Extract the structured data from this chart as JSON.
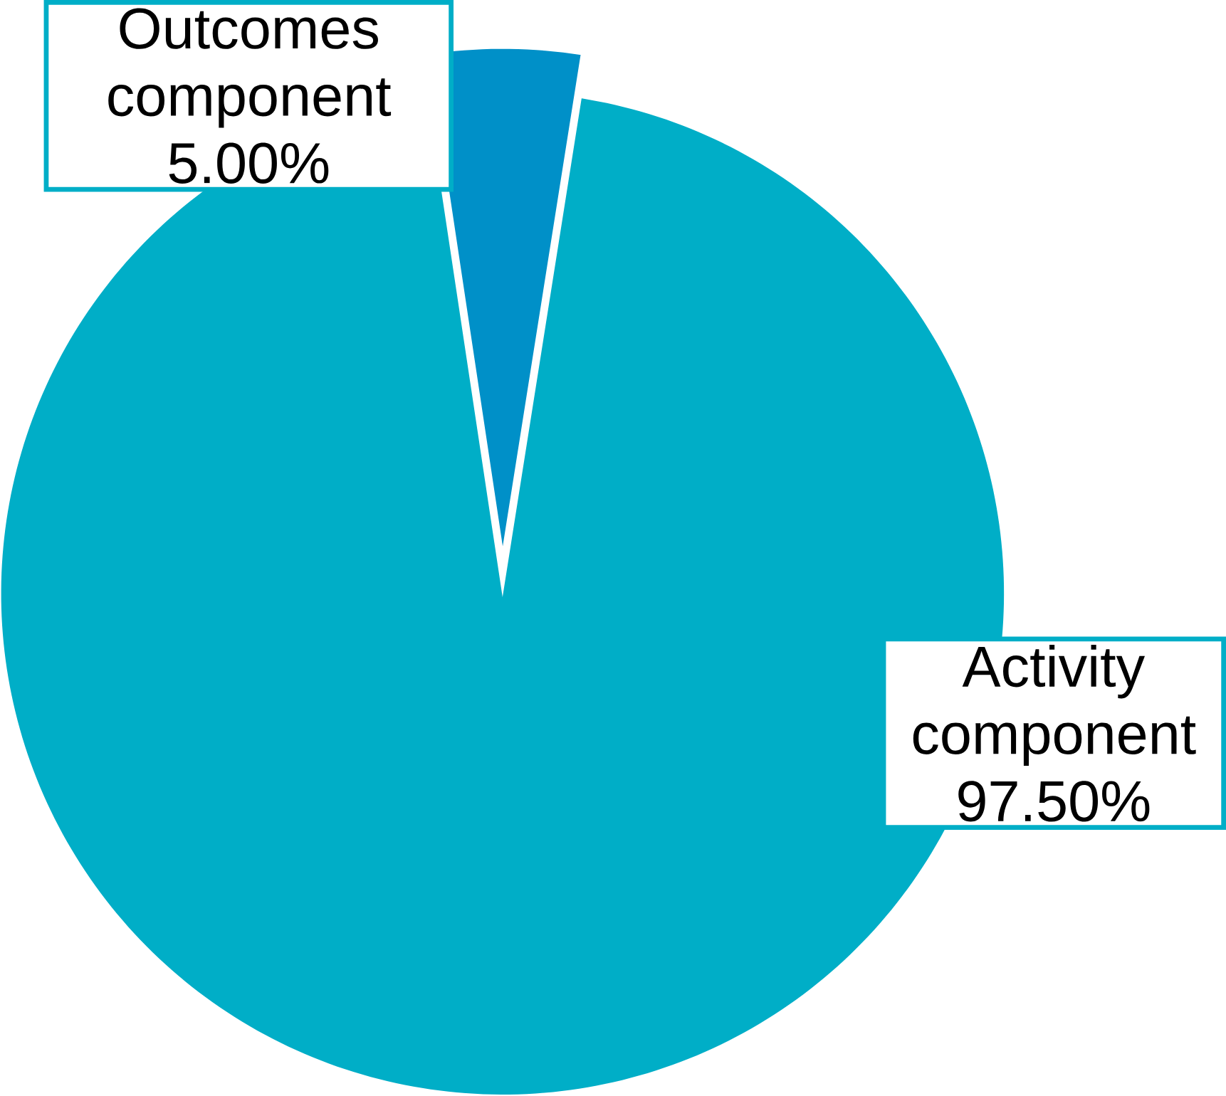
{
  "chart_data": {
    "type": "pie",
    "categories": [
      "Outcomes component",
      "Activity component"
    ],
    "values": [
      5.0,
      97.5
    ],
    "colors": [
      "#0090c8",
      "#00aec7"
    ],
    "value_labels": [
      "5.00%",
      "97.50%"
    ]
  }
}
